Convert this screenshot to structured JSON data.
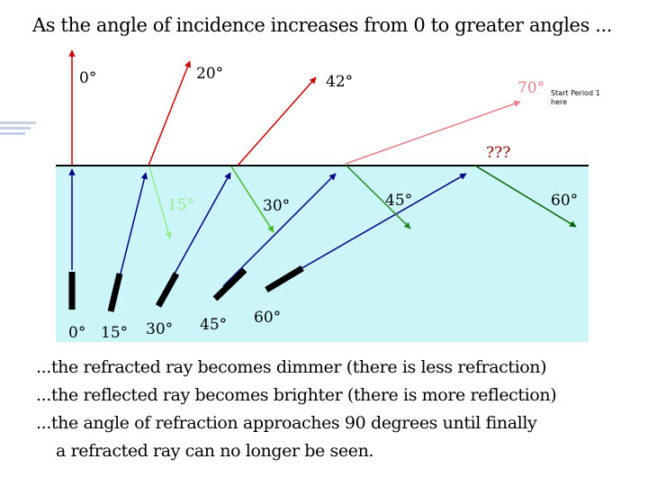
{
  "title": "As the angle of incidence increases from 0 to greater angles ...",
  "note": "Start Period 1 here",
  "reflected_angles": [
    "0°",
    "20°",
    "42°",
    "70°",
    "???"
  ],
  "refracted_angles": [
    "15°",
    "30°",
    "45°",
    "60°"
  ],
  "incidence_angles": [
    "0°",
    "15°",
    "30°",
    "45°",
    "60°"
  ],
  "captions": [
    "...the refracted ray becomes dimmer (there is less refraction)",
    "...the reflected ray becomes brighter (there is more reflection)",
    "...the angle of refraction approaches 90 degrees until finally",
    "a refracted ray can no longer be seen."
  ],
  "colors": {
    "water": "#ccf5fa",
    "ray_incident": "#000080",
    "ray_0": "#cc0000",
    "ray_20": "#cc0000",
    "ray_42": "#cc0000",
    "ray_70": "#e8808a",
    "refract_15": "#90ee90",
    "refract_30": "#44bb22",
    "refract_45": "#228822",
    "refract_60": "#006600"
  }
}
